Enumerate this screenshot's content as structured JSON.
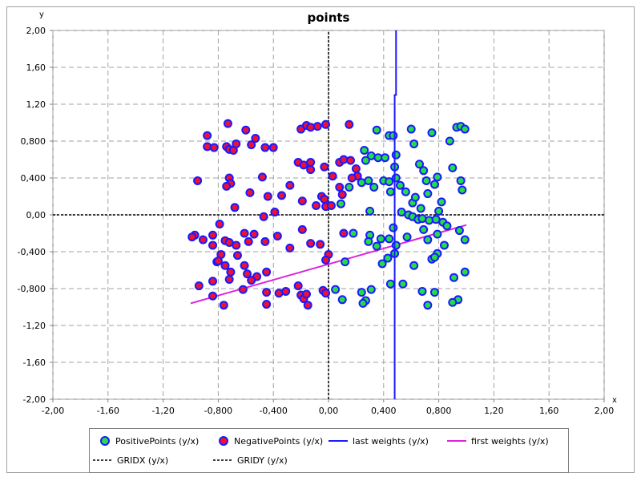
{
  "chart_data": {
    "type": "scatter",
    "title": "points",
    "xlabel": "x",
    "ylabel": "y",
    "xlim": [
      -2.0,
      2.0
    ],
    "ylim": [
      -2.0,
      2.0
    ],
    "x_ticks": [
      "-2,00",
      "-1,60",
      "-1,20",
      "-0,800",
      "-0,400",
      "0,00",
      "0,400",
      "0,800",
      "1,20",
      "1,60",
      "2,00"
    ],
    "y_ticks": [
      "-2,00",
      "-1,60",
      "-1,20",
      "-0,800",
      "-0,400",
      "0,00",
      "0,400",
      "0,800",
      "1,20",
      "1,60",
      "2,00"
    ],
    "grid": true,
    "legend_position": "bottom",
    "series": [
      {
        "name": "PositivePoints (y/x)",
        "kind": "scatter",
        "fill": "#22dd44",
        "stroke": "#1a1aff",
        "points": [
          [
            0.35,
            0.92
          ],
          [
            0.44,
            0.86
          ],
          [
            0.47,
            0.86
          ],
          [
            0.6,
            0.93
          ],
          [
            0.62,
            0.77
          ],
          [
            0.75,
            0.89
          ],
          [
            0.88,
            0.8
          ],
          [
            0.93,
            0.95
          ],
          [
            0.96,
            0.96
          ],
          [
            0.99,
            0.93
          ],
          [
            0.26,
            0.7
          ],
          [
            0.31,
            0.64
          ],
          [
            0.36,
            0.62
          ],
          [
            0.41,
            0.62
          ],
          [
            0.49,
            0.65
          ],
          [
            0.66,
            0.55
          ],
          [
            0.69,
            0.48
          ],
          [
            0.79,
            0.41
          ],
          [
            0.9,
            0.51
          ],
          [
            0.96,
            0.37
          ],
          [
            0.24,
            0.35
          ],
          [
            0.27,
            0.59
          ],
          [
            0.29,
            0.37
          ],
          [
            0.33,
            0.3
          ],
          [
            0.4,
            0.37
          ],
          [
            0.44,
            0.36
          ],
          [
            0.49,
            0.4
          ],
          [
            0.45,
            0.25
          ],
          [
            0.48,
            0.52
          ],
          [
            0.52,
            0.32
          ],
          [
            0.56,
            0.25
          ],
          [
            0.61,
            0.13
          ],
          [
            0.63,
            0.19
          ],
          [
            0.71,
            0.37
          ],
          [
            0.77,
            0.33
          ],
          [
            0.82,
            0.14
          ],
          [
            0.8,
            0.04
          ],
          [
            0.72,
            0.23
          ],
          [
            0.67,
            0.07
          ],
          [
            0.97,
            0.27
          ],
          [
            0.09,
            0.12
          ],
          [
            0.15,
            0.3
          ],
          [
            0.3,
            0.04
          ],
          [
            0.53,
            0.03
          ],
          [
            0.58,
            0.0
          ],
          [
            0.61,
            -0.02
          ],
          [
            0.65,
            -0.05
          ],
          [
            0.68,
            -0.04
          ],
          [
            0.73,
            -0.06
          ],
          [
            0.78,
            -0.05
          ],
          [
            0.83,
            -0.08
          ],
          [
            0.86,
            -0.12
          ],
          [
            0.47,
            -0.14
          ],
          [
            0.44,
            -0.26
          ],
          [
            0.38,
            -0.26
          ],
          [
            0.3,
            -0.22
          ],
          [
            0.35,
            -0.34
          ],
          [
            0.29,
            -0.29
          ],
          [
            0.49,
            -0.33
          ],
          [
            0.57,
            -0.24
          ],
          [
            0.69,
            -0.16
          ],
          [
            0.79,
            -0.21
          ],
          [
            0.95,
            -0.17
          ],
          [
            0.99,
            -0.27
          ],
          [
            0.72,
            -0.27
          ],
          [
            0.84,
            -0.33
          ],
          [
            0.43,
            -0.47
          ],
          [
            0.48,
            -0.42
          ],
          [
            0.39,
            -0.53
          ],
          [
            0.12,
            -0.51
          ],
          [
            0.18,
            -0.2
          ],
          [
            0.62,
            -0.55
          ],
          [
            0.75,
            -0.48
          ],
          [
            0.79,
            -0.42
          ],
          [
            0.77,
            -0.46
          ],
          [
            0.91,
            -0.68
          ],
          [
            0.99,
            -0.62
          ],
          [
            0.68,
            -0.83
          ],
          [
            0.77,
            -0.84
          ],
          [
            0.72,
            -0.98
          ],
          [
            0.94,
            -0.92
          ],
          [
            0.9,
            -0.95
          ],
          [
            0.54,
            -0.75
          ],
          [
            0.45,
            -0.75
          ],
          [
            0.31,
            -0.81
          ],
          [
            0.27,
            -0.93
          ],
          [
            0.24,
            -0.84
          ],
          [
            0.1,
            -0.92
          ],
          [
            0.05,
            -0.81
          ],
          [
            0.25,
            -0.96
          ]
        ]
      },
      {
        "name": "NegativePoints (y/x)",
        "kind": "scatter",
        "fill": "#ee1133",
        "stroke": "#1a1aff",
        "points": [
          [
            -0.88,
            0.86
          ],
          [
            -0.88,
            0.74
          ],
          [
            -0.83,
            0.73
          ],
          [
            -0.74,
            0.74
          ],
          [
            -0.73,
            0.99
          ],
          [
            -0.72,
            0.71
          ],
          [
            -0.69,
            0.7
          ],
          [
            -0.67,
            0.77
          ],
          [
            -0.6,
            0.92
          ],
          [
            -0.56,
            0.76
          ],
          [
            -0.53,
            0.83
          ],
          [
            -0.46,
            0.73
          ],
          [
            -0.4,
            0.73
          ],
          [
            -0.2,
            0.93
          ],
          [
            -0.16,
            0.97
          ],
          [
            -0.13,
            0.95
          ],
          [
            -0.08,
            0.96
          ],
          [
            -0.02,
            0.98
          ],
          [
            0.15,
            0.98
          ],
          [
            -0.95,
            0.37
          ],
          [
            -0.72,
            0.4
          ],
          [
            -0.71,
            0.34
          ],
          [
            -0.74,
            0.31
          ],
          [
            -0.57,
            0.24
          ],
          [
            -0.48,
            0.41
          ],
          [
            -0.44,
            0.2
          ],
          [
            -0.34,
            0.21
          ],
          [
            -0.28,
            0.32
          ],
          [
            -0.22,
            0.57
          ],
          [
            -0.18,
            0.54
          ],
          [
            -0.13,
            0.57
          ],
          [
            -0.13,
            0.49
          ],
          [
            -0.03,
            0.52
          ],
          [
            0.03,
            0.42
          ],
          [
            0.08,
            0.57
          ],
          [
            0.11,
            0.6
          ],
          [
            0.16,
            0.59
          ],
          [
            0.2,
            0.5
          ],
          [
            0.21,
            0.42
          ],
          [
            0.17,
            0.4
          ],
          [
            0.08,
            0.3
          ],
          [
            0.1,
            0.22
          ],
          [
            -0.19,
            0.15
          ],
          [
            -0.09,
            0.1
          ],
          [
            -0.05,
            0.2
          ],
          [
            -0.03,
            0.17
          ],
          [
            -0.02,
            0.09
          ],
          [
            0.02,
            0.1
          ],
          [
            -0.39,
            0.03
          ],
          [
            -0.47,
            -0.02
          ],
          [
            -0.68,
            0.08
          ],
          [
            -0.97,
            -0.22
          ],
          [
            -0.99,
            -0.24
          ],
          [
            -0.91,
            -0.27
          ],
          [
            -0.84,
            -0.22
          ],
          [
            -0.79,
            -0.1
          ],
          [
            -0.75,
            -0.28
          ],
          [
            -0.72,
            -0.3
          ],
          [
            -0.67,
            -0.33
          ],
          [
            -0.61,
            -0.2
          ],
          [
            -0.58,
            -0.29
          ],
          [
            -0.54,
            -0.21
          ],
          [
            -0.46,
            -0.29
          ],
          [
            -0.37,
            -0.23
          ],
          [
            -0.28,
            -0.36
          ],
          [
            -0.19,
            -0.16
          ],
          [
            -0.13,
            -0.31
          ],
          [
            -0.06,
            -0.32
          ],
          [
            0.0,
            -0.43
          ],
          [
            -0.02,
            -0.49
          ],
          [
            0.11,
            -0.2
          ],
          [
            -0.84,
            -0.33
          ],
          [
            -0.81,
            -0.51
          ],
          [
            -0.78,
            -0.43
          ],
          [
            -0.75,
            -0.55
          ],
          [
            -0.71,
            -0.62
          ],
          [
            -0.66,
            -0.44
          ],
          [
            -0.59,
            -0.64
          ],
          [
            -0.52,
            -0.67
          ],
          [
            -0.45,
            -0.62
          ],
          [
            -0.94,
            -0.77
          ],
          [
            -0.84,
            -0.72
          ],
          [
            -0.72,
            -0.7
          ],
          [
            -0.62,
            -0.81
          ],
          [
            -0.56,
            -0.71
          ],
          [
            -0.45,
            -0.84
          ],
          [
            -0.36,
            -0.85
          ],
          [
            -0.31,
            -0.83
          ],
          [
            -0.2,
            -0.87
          ],
          [
            -0.18,
            -0.91
          ],
          [
            -0.16,
            -0.86
          ],
          [
            -0.04,
            -0.82
          ],
          [
            -0.02,
            -0.85
          ],
          [
            -0.15,
            -0.98
          ],
          [
            -0.22,
            -0.77
          ],
          [
            -0.84,
            -0.88
          ],
          [
            -0.76,
            -0.98
          ],
          [
            -0.45,
            -0.97
          ],
          [
            -0.8,
            -0.5
          ],
          [
            -0.61,
            -0.55
          ]
        ]
      },
      {
        "name": "last weights (y/x)",
        "kind": "line",
        "stroke": "#1a1aff",
        "points": [
          [
            0.48,
            -2.0
          ],
          [
            0.48,
            1.3
          ],
          [
            0.49,
            1.3
          ],
          [
            0.49,
            2.0
          ]
        ]
      },
      {
        "name": "first weights (y/x)",
        "kind": "line",
        "stroke": "#dd22dd",
        "points": [
          [
            -1.0,
            -0.96
          ],
          [
            1.0,
            -0.11
          ]
        ]
      },
      {
        "name": "GRIDX (y/x)",
        "kind": "dashed",
        "stroke": "#000000",
        "points": [
          [
            -2.0,
            0.0
          ],
          [
            2.0,
            0.0
          ]
        ]
      },
      {
        "name": "GRIDY (y/x)",
        "kind": "dashed",
        "stroke": "#000000",
        "points": [
          [
            0.0,
            -2.0
          ],
          [
            0.0,
            2.0
          ]
        ]
      }
    ]
  }
}
